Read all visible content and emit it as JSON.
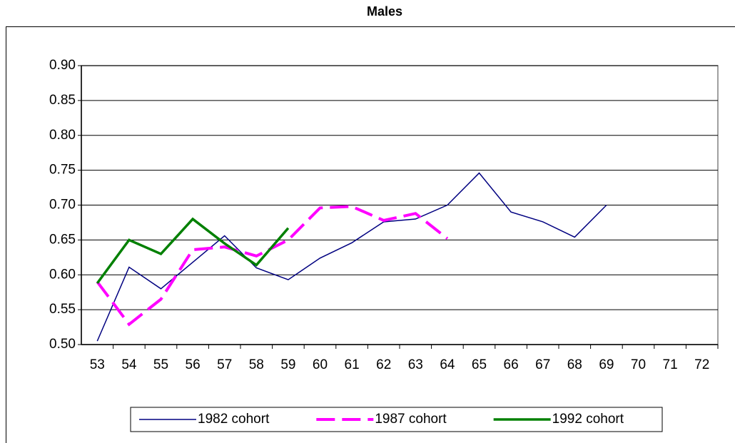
{
  "chart_data": {
    "type": "line",
    "title": "Males",
    "categories": [
      "53",
      "54",
      "55",
      "56",
      "57",
      "58",
      "59",
      "60",
      "61",
      "62",
      "63",
      "64",
      "65",
      "66",
      "67",
      "68",
      "69",
      "70",
      "71",
      "72"
    ],
    "series": [
      {
        "name": "1982 cohort",
        "color": "#000080",
        "dash": "solid",
        "values": [
          0.505,
          0.611,
          0.58,
          0.618,
          0.656,
          0.61,
          0.593,
          0.624,
          0.646,
          0.676,
          0.68,
          0.7,
          0.746,
          0.69,
          0.676,
          0.654,
          0.7,
          null,
          null,
          null
        ]
      },
      {
        "name": "1987 cohort",
        "color": "#ff00ff",
        "dash": "dashed",
        "values": [
          0.59,
          0.529,
          0.565,
          0.636,
          0.64,
          0.627,
          0.65,
          0.696,
          0.698,
          0.678,
          0.688,
          0.652,
          null,
          null,
          null,
          null,
          null,
          null,
          null,
          null
        ]
      },
      {
        "name": "1992 cohort",
        "color": "#008000",
        "dash": "solid",
        "values": [
          0.588,
          0.65,
          0.63,
          0.68,
          0.645,
          0.614,
          0.667,
          null,
          null,
          null,
          null,
          null,
          null,
          null,
          null,
          null,
          null,
          null,
          null,
          null
        ]
      }
    ],
    "ylim": [
      0.5,
      0.9
    ],
    "yticks": [
      {
        "value": 0.5,
        "label": "0.50"
      },
      0.55,
      {
        "value": 0.6,
        "label": "0.60"
      },
      0.65,
      {
        "value": 0.7,
        "label": "0.70"
      },
      0.75,
      {
        "value": 0.8,
        "label": "0.80"
      },
      0.85,
      {
        "value": 0.9,
        "label": "0.90"
      }
    ],
    "grid": true,
    "legend": "bottom"
  }
}
